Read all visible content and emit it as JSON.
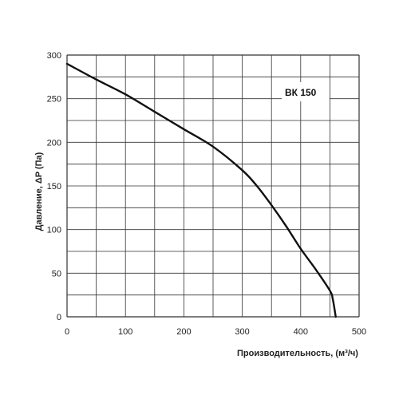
{
  "chart_data": {
    "type": "line",
    "xlabel": "Производительность, (м³/ч)",
    "ylabel": "Давление, ΔP (Па)",
    "xlim": [
      0,
      500
    ],
    "ylim": [
      0,
      300
    ],
    "x_ticks": [
      "0",
      "100",
      "200",
      "300",
      "400",
      "500"
    ],
    "y_ticks": [
      "0",
      "50",
      "100",
      "150",
      "200",
      "250",
      "300"
    ],
    "grid": true,
    "series": [
      {
        "name": "ВК 150",
        "x": [
          0,
          50,
          100,
          150,
          200,
          250,
          300,
          325,
          350,
          375,
          400,
          425,
          450,
          455,
          460
        ],
        "y": [
          290,
          272,
          255,
          235,
          215,
          195,
          168,
          150,
          128,
          104,
          78,
          55,
          30,
          20,
          0
        ]
      }
    ],
    "colors": {
      "line": "#111111",
      "grid": "#333333",
      "label_box": "#ffffff"
    }
  }
}
